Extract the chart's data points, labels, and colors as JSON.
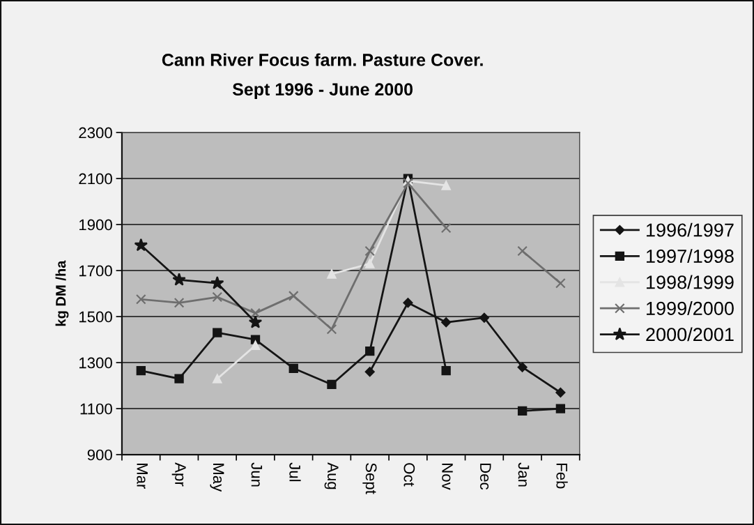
{
  "chart_data": {
    "type": "line",
    "title": "Cann River Focus farm. Pasture Cover.",
    "subtitle": "Sept 1996 - June 2000",
    "ylabel": "kg DM /ha",
    "categories": [
      "Mar",
      "Apr",
      "May",
      "Jun",
      "Jul",
      "Aug",
      "Sept",
      "Oct",
      "Nov",
      "Dec",
      "Jan",
      "Feb"
    ],
    "series": [
      {
        "name": "1996/1997",
        "color": "#141414",
        "marker": "diamond",
        "values": [
          null,
          null,
          null,
          null,
          null,
          null,
          1260,
          1560,
          1475,
          1495,
          1280,
          1170
        ]
      },
      {
        "name": "1997/1998",
        "color": "#141414",
        "marker": "square",
        "values": [
          1265,
          1230,
          1430,
          1400,
          1275,
          1205,
          1350,
          2100,
          1265,
          null,
          1090,
          1100
        ]
      },
      {
        "name": "1998/1999",
        "color": "#e4e4e4",
        "marker": "triangle",
        "values": [
          null,
          null,
          1230,
          1375,
          null,
          1685,
          1730,
          2090,
          2070,
          null,
          null,
          null
        ]
      },
      {
        "name": "1999/2000",
        "color": "#6e6e6e",
        "marker": "cross",
        "values": [
          1575,
          1560,
          1585,
          1515,
          1590,
          1445,
          1785,
          2080,
          1885,
          null,
          1785,
          1645
        ]
      },
      {
        "name": "2000/2001",
        "color": "#141414",
        "marker": "star",
        "values": [
          1810,
          1660,
          1645,
          1475,
          null,
          null,
          null,
          null,
          null,
          null,
          null,
          null
        ]
      }
    ],
    "ylim": [
      900,
      2300
    ],
    "yticks": [
      900,
      1100,
      1300,
      1500,
      1700,
      1900,
      2100,
      2300
    ],
    "grid": "y",
    "legend": "right"
  }
}
